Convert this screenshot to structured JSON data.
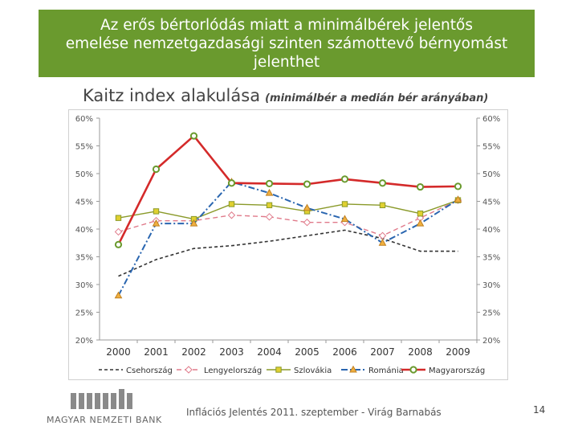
{
  "slide": {
    "title": "Az erős bértorlódás miatt a minimálbérek jelentős\nemelése nemzetgazdasági szinten számottevő bérnyomást\njelenthet",
    "subtitle": "Kaitz index alakulása",
    "subtitle_note": "(minimálbér a medián bér arányában)",
    "footer": "Inflációs Jelentés 2011. szeptember - Virág Barnabás",
    "page_number": "14",
    "logo_text": "MAGYAR NEMZETI BANK"
  },
  "colors": {
    "title_bg": "#6a9a2e",
    "cz": "#333333",
    "pl": "#e07a8a",
    "sk": "#8a9a2a",
    "ro": "#2a66b0",
    "hu": "#d42a2a",
    "hu_marker": "#6a9a2e",
    "sk_marker": "#e0d030",
    "ro_marker": "#f0b040"
  },
  "chart_data": {
    "type": "line",
    "title": "Kaitz index alakulása",
    "categories": [
      "2000",
      "2001",
      "2002",
      "2003",
      "2004",
      "2005",
      "2006",
      "2007",
      "2008",
      "2009"
    ],
    "ylim": [
      20,
      60
    ],
    "yticks": [
      "20%",
      "25%",
      "30%",
      "35%",
      "40%",
      "45%",
      "50%",
      "55%",
      "60%"
    ],
    "grid": false,
    "legend_position": "bottom",
    "series": [
      {
        "name": "Csehország",
        "values": [
          31.5,
          34.5,
          36.5,
          37,
          37.8,
          38.8,
          39.8,
          38.3,
          36,
          36
        ]
      },
      {
        "name": "Lengyelország",
        "values": [
          39.5,
          41.5,
          41.5,
          42.5,
          42.2,
          41.2,
          41.2,
          38.8,
          42,
          45.2
        ]
      },
      {
        "name": "Szlovákia",
        "values": [
          42,
          43.2,
          41.8,
          44.5,
          44.3,
          43.2,
          44.5,
          44.3,
          42.8,
          45.2
        ]
      },
      {
        "name": "Románia",
        "values": [
          28,
          41,
          41,
          48.5,
          46.5,
          43.8,
          41.8,
          37.5,
          41,
          45.3
        ]
      },
      {
        "name": "Magyarország",
        "values": [
          37.2,
          50.8,
          56.8,
          48.3,
          48.2,
          48.1,
          49,
          48.3,
          47.6,
          47.7
        ]
      }
    ]
  }
}
